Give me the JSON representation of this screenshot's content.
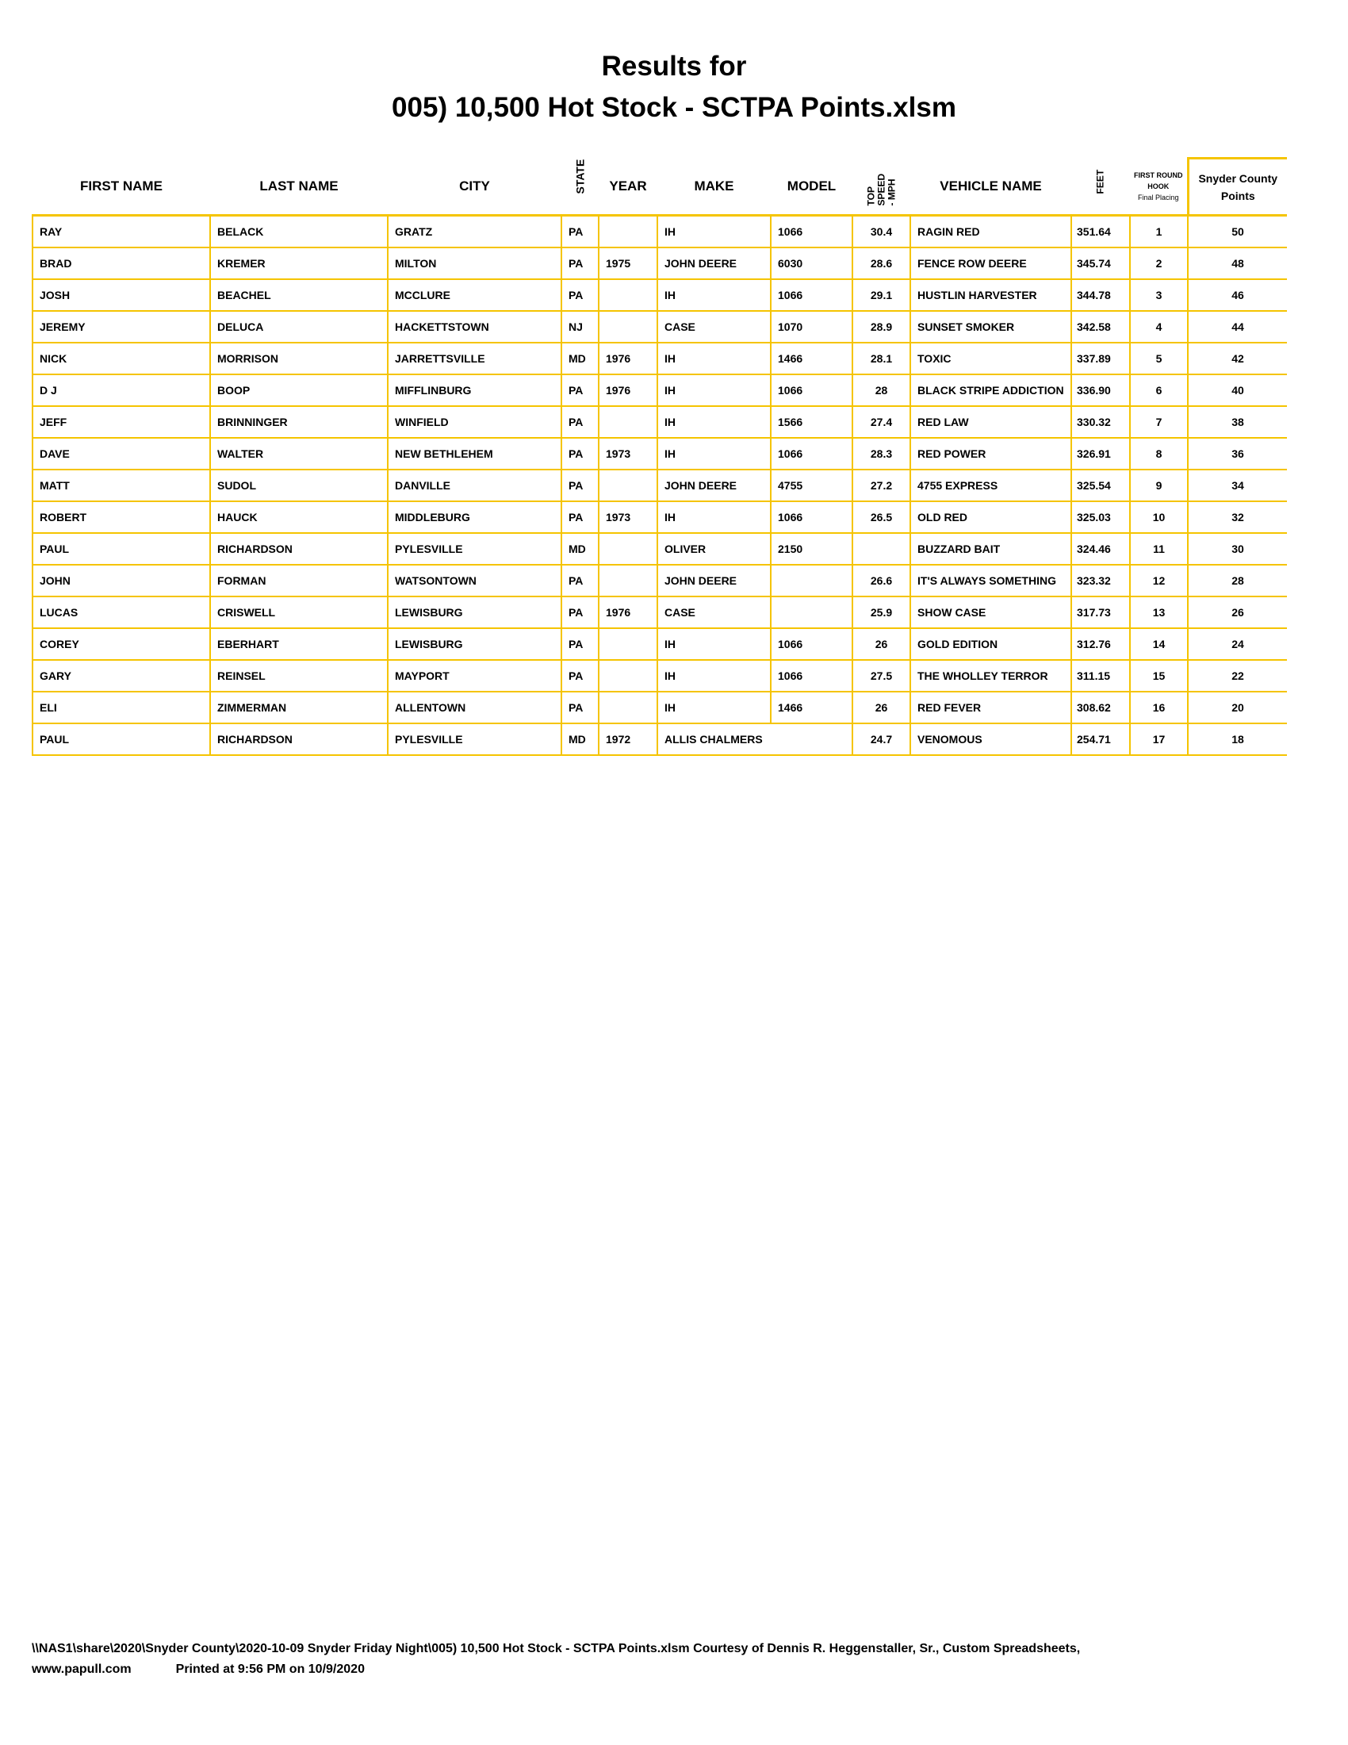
{
  "title_line1": "Results for",
  "title_line2": "005) 10,500 Hot Stock - SCTPA Points.xlsm",
  "headers": {
    "first_name": "FIRST NAME",
    "last_name": "LAST NAME",
    "city": "CITY",
    "state": "STATE",
    "year": "YEAR",
    "make": "MAKE",
    "model": "MODEL",
    "top_speed": [
      "TOP",
      "SPEED",
      "- MPH"
    ],
    "vehicle_name": "VEHICLE NAME",
    "feet": "FEET",
    "placing": [
      "FIRST ROUND",
      "HOOK",
      "Final Placing"
    ],
    "points": [
      "Snyder County",
      "Points"
    ]
  },
  "rows": [
    [
      "RAY",
      "BELACK",
      "GRATZ",
      "PA",
      "",
      "IH",
      "1066",
      "30.4",
      "RAGIN RED",
      "351.64",
      "1",
      "50"
    ],
    [
      "BRAD",
      "KREMER",
      "MILTON",
      "PA",
      "1975",
      "JOHN DEERE",
      "6030",
      "28.6",
      "FENCE ROW DEERE",
      "345.74",
      "2",
      "48"
    ],
    [
      "JOSH",
      "BEACHEL",
      "MCCLURE",
      "PA",
      "",
      "IH",
      "1066",
      "29.1",
      "HUSTLIN HARVESTER",
      "344.78",
      "3",
      "46"
    ],
    [
      "JEREMY",
      "DELUCA",
      "HACKETTSTOWN",
      "NJ",
      "",
      "CASE",
      "1070",
      "28.9",
      "SUNSET SMOKER",
      "342.58",
      "4",
      "44"
    ],
    [
      "NICK",
      "MORRISON",
      "JARRETTSVILLE",
      "MD",
      "1976",
      "IH",
      "1466",
      "28.1",
      "TOXIC",
      "337.89",
      "5",
      "42"
    ],
    [
      "D J",
      "BOOP",
      "MIFFLINBURG",
      "PA",
      "1976",
      "IH",
      "1066",
      "28",
      "BLACK STRIPE ADDICTION",
      "336.90",
      "6",
      "40"
    ],
    [
      "JEFF",
      "BRINNINGER",
      "WINFIELD",
      "PA",
      "",
      "IH",
      "1566",
      "27.4",
      "RED LAW",
      "330.32",
      "7",
      "38"
    ],
    [
      "DAVE",
      "WALTER",
      "NEW BETHLEHEM",
      "PA",
      "1973",
      "IH",
      "1066",
      "28.3",
      "RED POWER",
      "326.91",
      "8",
      "36"
    ],
    [
      "MATT",
      "SUDOL",
      "DANVILLE",
      "PA",
      "",
      "JOHN DEERE",
      "4755",
      "27.2",
      "4755 EXPRESS",
      "325.54",
      "9",
      "34"
    ],
    [
      "ROBERT",
      "HAUCK",
      "MIDDLEBURG",
      "PA",
      "1973",
      "IH",
      "1066",
      "26.5",
      "OLD RED",
      "325.03",
      "10",
      "32"
    ],
    [
      "PAUL",
      "RICHARDSON",
      "PYLESVILLE",
      "MD",
      "",
      "OLIVER",
      "2150",
      "",
      "BUZZARD BAIT",
      "324.46",
      "11",
      "30"
    ],
    [
      "JOHN",
      "FORMAN",
      "WATSONTOWN",
      "PA",
      "",
      "JOHN DEERE",
      "",
      "26.6",
      "IT'S ALWAYS SOMETHING",
      "323.32",
      "12",
      "28"
    ],
    [
      "LUCAS",
      "CRISWELL",
      "LEWISBURG",
      "PA",
      "1976",
      "CASE",
      "",
      "25.9",
      "SHOW CASE",
      "317.73",
      "13",
      "26"
    ],
    [
      "COREY",
      "EBERHART",
      "LEWISBURG",
      "PA",
      "",
      "IH",
      "1066",
      "26",
      "GOLD EDITION",
      "312.76",
      "14",
      "24"
    ],
    [
      "GARY",
      "REINSEL",
      "MAYPORT",
      "PA",
      "",
      "IH",
      "1066",
      "27.5",
      "THE WHOLLEY TERROR",
      "311.15",
      "15",
      "22"
    ],
    [
      "ELI",
      "ZIMMERMAN",
      "ALLENTOWN",
      "PA",
      "",
      "IH",
      "1466",
      "26",
      "RED FEVER",
      "308.62",
      "16",
      "20"
    ],
    [
      "PAUL",
      "RICHARDSON",
      "PYLESVILLE",
      "MD",
      "1972",
      "ALLIS CHALMERS",
      "",
      "24.7",
      "VENOMOUS",
      "254.71",
      "17",
      "18"
    ]
  ],
  "footer": {
    "path": "\\\\NAS1\\share\\2020\\Snyder County\\2020-10-09 Snyder Friday Night\\005) 10,500 Hot Stock - SCTPA Points.xlsm  Courtesy of Dennis R. Heggenstaller, Sr., Custom Spreadsheets, www.papull.com",
    "printed": "Printed at 9:56 PM on 10/9/2020"
  },
  "colors": {
    "border": "#f5c400"
  }
}
